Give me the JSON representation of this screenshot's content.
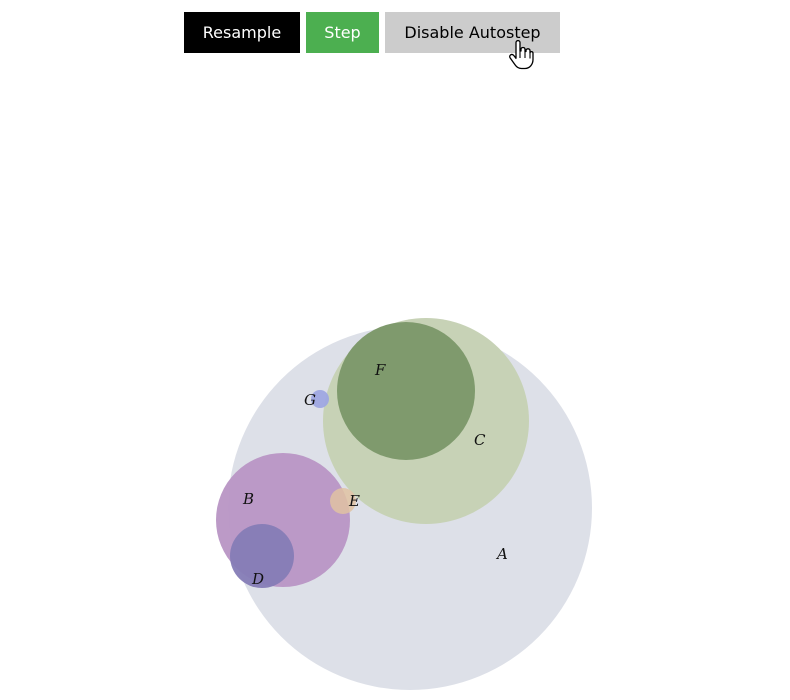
{
  "toolbar": {
    "resample_label": "Resample",
    "step_label": "Step",
    "autostep_label": "Disable Autostep"
  },
  "cursor_icon": "hand-pointer-icon",
  "colors": {
    "resample_bg": "#000000",
    "step_bg": "#4caf50",
    "autostep_bg": "#cccccc"
  },
  "sets": [
    {
      "id": "A",
      "label": "A",
      "color": "#dde0e8"
    },
    {
      "id": "C",
      "label": "C",
      "color": "#c7d2b6"
    },
    {
      "id": "F",
      "label": "F",
      "color": "#7f9a6d"
    },
    {
      "id": "B",
      "label": "B",
      "color": "#ba97c5"
    },
    {
      "id": "D",
      "label": "D",
      "color": "#857cb6"
    },
    {
      "id": "E",
      "label": "E",
      "color": "#e0c2a2"
    },
    {
      "id": "G",
      "label": "G",
      "color": "#9ea6e2"
    }
  ]
}
